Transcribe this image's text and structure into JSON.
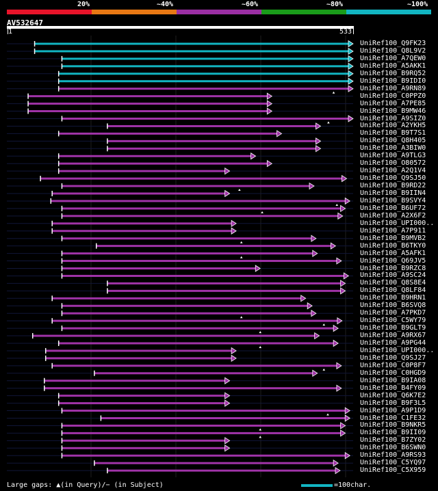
{
  "legend": {
    "labels": [
      "20%",
      "~40%",
      "~60%",
      "~80%",
      "~100%"
    ],
    "colors": [
      "#e8142a",
      "#e87814",
      "#9b2fa3",
      "#1a9c1a",
      "#12b5c2"
    ]
  },
  "query": {
    "name": "AV532647",
    "start": "1",
    "end": "533",
    "length": 533
  },
  "hits": [
    {
      "label": "UniRef100_Q9FK23",
      "start": 43,
      "end": 533,
      "color": "cyan",
      "gaps": []
    },
    {
      "label": "UniRef100_Q8L9V2",
      "start": 43,
      "end": 533,
      "color": "cyan",
      "gaps": []
    },
    {
      "label": "UniRef100_A7QEW0",
      "start": 85,
      "end": 533,
      "color": "cyan",
      "gaps": []
    },
    {
      "label": "UniRef100_A5AKK1",
      "start": 85,
      "end": 533,
      "color": "cyan",
      "gaps": []
    },
    {
      "label": "UniRef100_B9RQ52",
      "start": 80,
      "end": 533,
      "color": "cyan",
      "gaps": []
    },
    {
      "label": "UniRef100_B9IDI0",
      "start": 80,
      "end": 533,
      "color": "cyan",
      "gaps": []
    },
    {
      "label": "UniRef100_A9RN89",
      "start": 80,
      "end": 533,
      "color": "magenta",
      "gaps": [
        503
      ]
    },
    {
      "label": "UniRef100_C0PPZ0",
      "start": 33,
      "end": 408,
      "color": "magenta",
      "gaps": []
    },
    {
      "label": "UniRef100_A7PE85",
      "start": 33,
      "end": 408,
      "color": "magenta",
      "gaps": []
    },
    {
      "label": "UniRef100_B9MW46",
      "start": 33,
      "end": 408,
      "color": "magenta",
      "gaps": []
    },
    {
      "label": "UniRef100_A9SIZ0",
      "start": 85,
      "end": 533,
      "color": "magenta",
      "gaps": [
        495
      ]
    },
    {
      "label": "UniRef100_A2YKH5",
      "start": 155,
      "end": 483,
      "color": "magenta",
      "gaps": []
    },
    {
      "label": "UniRef100_B9T7S1",
      "start": 80,
      "end": 423,
      "color": "magenta",
      "gaps": []
    },
    {
      "label": "UniRef100_Q8H405",
      "start": 155,
      "end": 483,
      "color": "magenta",
      "gaps": []
    },
    {
      "label": "UniRef100_A3BIW0",
      "start": 155,
      "end": 483,
      "color": "magenta",
      "gaps": []
    },
    {
      "label": "UniRef100_A9TLG3",
      "start": 80,
      "end": 383,
      "color": "magenta",
      "gaps": []
    },
    {
      "label": "UniRef100_O80572",
      "start": 80,
      "end": 408,
      "color": "magenta",
      "gaps": []
    },
    {
      "label": "UniRef100_A2Q1V4",
      "start": 80,
      "end": 343,
      "color": "magenta",
      "gaps": []
    },
    {
      "label": "UniRef100_Q9SJ50",
      "start": 52,
      "end": 523,
      "color": "magenta",
      "gaps": []
    },
    {
      "label": "UniRef100_B9RD22",
      "start": 85,
      "end": 473,
      "color": "magenta",
      "gaps": [
        358
      ]
    },
    {
      "label": "UniRef100_B9IIN4",
      "start": 70,
      "end": 343,
      "color": "magenta",
      "gaps": []
    },
    {
      "label": "UniRef100_B9SVY4",
      "start": 68,
      "end": 528,
      "color": "magenta",
      "gaps": [
        508
      ]
    },
    {
      "label": "UniRef100_B6UF72",
      "start": 85,
      "end": 521,
      "color": "magenta",
      "gaps": [
        393
      ]
    },
    {
      "label": "UniRef100_A2X6F2",
      "start": 85,
      "end": 517,
      "color": "magenta",
      "gaps": []
    },
    {
      "label": "UniRef100_UPI000..",
      "start": 70,
      "end": 353,
      "color": "magenta",
      "gaps": []
    },
    {
      "label": "UniRef100_A7P911",
      "start": 70,
      "end": 353,
      "color": "magenta",
      "gaps": []
    },
    {
      "label": "UniRef100_B9MVB2",
      "start": 85,
      "end": 476,
      "color": "magenta",
      "gaps": [
        361
      ]
    },
    {
      "label": "UniRef100_B6TKY0",
      "start": 138,
      "end": 506,
      "color": "magenta",
      "gaps": []
    },
    {
      "label": "UniRef100_A5AFK1",
      "start": 85,
      "end": 478,
      "color": "magenta",
      "gaps": [
        361
      ]
    },
    {
      "label": "UniRef100_Q69JV5",
      "start": 85,
      "end": 515,
      "color": "magenta",
      "gaps": []
    },
    {
      "label": "UniRef100_B9RZC8",
      "start": 85,
      "end": 390,
      "color": "magenta",
      "gaps": []
    },
    {
      "label": "UniRef100_A9SC24",
      "start": 85,
      "end": 526,
      "color": "magenta",
      "gaps": []
    },
    {
      "label": "UniRef100_Q8S8E4",
      "start": 155,
      "end": 521,
      "color": "magenta",
      "gaps": []
    },
    {
      "label": "UniRef100_Q8LF84",
      "start": 155,
      "end": 521,
      "color": "magenta",
      "gaps": []
    },
    {
      "label": "UniRef100_B9HRN1",
      "start": 70,
      "end": 460,
      "color": "magenta",
      "gaps": []
    },
    {
      "label": "UniRef100_B6SVQ8",
      "start": 85,
      "end": 470,
      "color": "magenta",
      "gaps": []
    },
    {
      "label": "UniRef100_A7PKD7",
      "start": 85,
      "end": 476,
      "color": "magenta",
      "gaps": [
        361
      ]
    },
    {
      "label": "UniRef100_C5WY79",
      "start": 70,
      "end": 516,
      "color": "magenta",
      "gaps": [
        488
      ]
    },
    {
      "label": "UniRef100_B9GLT9",
      "start": 85,
      "end": 510,
      "color": "magenta",
      "gaps": [
        390
      ]
    },
    {
      "label": "UniRef100_A9RX67",
      "start": 40,
      "end": 481,
      "color": "magenta",
      "gaps": []
    },
    {
      "label": "UniRef100_A9PG44",
      "start": 80,
      "end": 510,
      "color": "magenta",
      "gaps": [
        390
      ]
    },
    {
      "label": "UniRef100_UPI000..",
      "start": 60,
      "end": 353,
      "color": "magenta",
      "gaps": []
    },
    {
      "label": "UniRef100_Q9SJ27",
      "start": 60,
      "end": 353,
      "color": "magenta",
      "gaps": []
    },
    {
      "label": "UniRef100_C0P8F7",
      "start": 70,
      "end": 515,
      "color": "magenta",
      "gaps": [
        488
      ]
    },
    {
      "label": "UniRef100_C0HGD9",
      "start": 135,
      "end": 478,
      "color": "magenta",
      "gaps": []
    },
    {
      "label": "UniRef100_B9IA08",
      "start": 58,
      "end": 343,
      "color": "magenta",
      "gaps": []
    },
    {
      "label": "UniRef100_B4FY09",
      "start": 58,
      "end": 515,
      "color": "magenta",
      "gaps": []
    },
    {
      "label": "UniRef100_Q6K7E2",
      "start": 80,
      "end": 343,
      "color": "magenta",
      "gaps": []
    },
    {
      "label": "UniRef100_B9F3L5",
      "start": 80,
      "end": 343,
      "color": "magenta",
      "gaps": []
    },
    {
      "label": "UniRef100_A9P1D9",
      "start": 85,
      "end": 528,
      "color": "magenta",
      "gaps": [
        494
      ]
    },
    {
      "label": "UniRef100_C1FE32",
      "start": 145,
      "end": 528,
      "color": "magenta",
      "gaps": []
    },
    {
      "label": "UniRef100_B9NKR5",
      "start": 85,
      "end": 521,
      "color": "magenta",
      "gaps": [
        390
      ]
    },
    {
      "label": "UniRef100_B9II09",
      "start": 85,
      "end": 521,
      "color": "magenta",
      "gaps": [
        390
      ]
    },
    {
      "label": "UniRef100_B7ZY02",
      "start": 85,
      "end": 343,
      "color": "magenta",
      "gaps": []
    },
    {
      "label": "UniRef100_B6SWN0",
      "start": 85,
      "end": 343,
      "color": "magenta",
      "gaps": []
    },
    {
      "label": "UniRef100_A9RS93",
      "start": 85,
      "end": 528,
      "color": "magenta",
      "gaps": []
    },
    {
      "label": "UniRef100_C5YQ97",
      "start": 135,
      "end": 510,
      "color": "magenta",
      "gaps": []
    },
    {
      "label": "UniRef100_C5X959",
      "start": 155,
      "end": 513,
      "color": "magenta",
      "gaps": []
    }
  ],
  "footer": {
    "text": "Large gaps: ▲(in Query)/− (in Subject)",
    "scale_text": "=100char."
  }
}
